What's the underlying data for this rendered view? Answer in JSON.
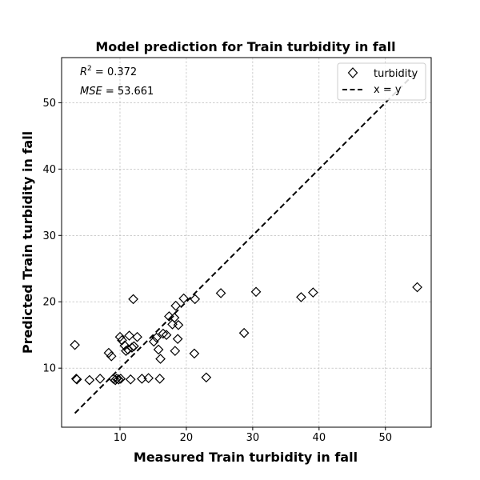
{
  "chart_data": {
    "type": "scatter",
    "title": "Model prediction for Train turbidity in fall",
    "xlabel": "Measured Train turbidity in fall",
    "ylabel": "Predicted Train turbidity in fall",
    "xlim": [
      1.2,
      56.9
    ],
    "ylim": [
      1.1,
      56.8
    ],
    "xticks": [
      10,
      20,
      30,
      40,
      50
    ],
    "yticks": [
      10,
      20,
      30,
      40,
      50
    ],
    "grid": true,
    "legend_position": "top-right",
    "annotations": {
      "r2_label": "R",
      "r2_sup": "2",
      "r2_value": " = 0.372",
      "mse_label": "MSE",
      "mse_value": " = 53.661"
    },
    "series": [
      {
        "name": "turbidity",
        "marker": "diamond",
        "color": "#000000",
        "points": [
          [
            3.2,
            13.5
          ],
          [
            3.4,
            8.4
          ],
          [
            3.5,
            8.3
          ],
          [
            5.4,
            8.2
          ],
          [
            7.0,
            8.4
          ],
          [
            8.3,
            12.3
          ],
          [
            8.7,
            11.8
          ],
          [
            9.0,
            8.4
          ],
          [
            9.3,
            8.2
          ],
          [
            9.5,
            8.4
          ],
          [
            9.8,
            8.3
          ],
          [
            10.0,
            14.7
          ],
          [
            10.1,
            8.4
          ],
          [
            10.3,
            14.2
          ],
          [
            10.7,
            13.4
          ],
          [
            10.9,
            12.6
          ],
          [
            11.2,
            12.8
          ],
          [
            11.4,
            14.9
          ],
          [
            11.6,
            8.3
          ],
          [
            11.8,
            13.1
          ],
          [
            12.0,
            20.4
          ],
          [
            12.1,
            13.3
          ],
          [
            12.6,
            14.7
          ],
          [
            13.3,
            8.4
          ],
          [
            14.3,
            8.5
          ],
          [
            15.1,
            14.0
          ],
          [
            15.5,
            14.6
          ],
          [
            15.8,
            12.8
          ],
          [
            16.0,
            8.4
          ],
          [
            16.1,
            11.4
          ],
          [
            16.5,
            15.2
          ],
          [
            17.0,
            15.0
          ],
          [
            17.4,
            17.8
          ],
          [
            17.9,
            16.6
          ],
          [
            18.2,
            17.6
          ],
          [
            18.3,
            12.6
          ],
          [
            18.4,
            19.4
          ],
          [
            18.7,
            14.4
          ],
          [
            18.8,
            16.5
          ],
          [
            19.6,
            20.5
          ],
          [
            21.2,
            12.2
          ],
          [
            21.3,
            20.4
          ],
          [
            23.0,
            8.6
          ],
          [
            25.2,
            21.3
          ],
          [
            28.7,
            15.3
          ],
          [
            30.5,
            21.5
          ],
          [
            37.3,
            20.7
          ],
          [
            39.1,
            21.4
          ],
          [
            54.8,
            22.2
          ]
        ]
      },
      {
        "name": "x = y",
        "type": "line",
        "style": "dashed",
        "color": "#000000",
        "x": [
          3.2,
          54.8
        ],
        "y": [
          3.2,
          54.8
        ]
      }
    ]
  }
}
